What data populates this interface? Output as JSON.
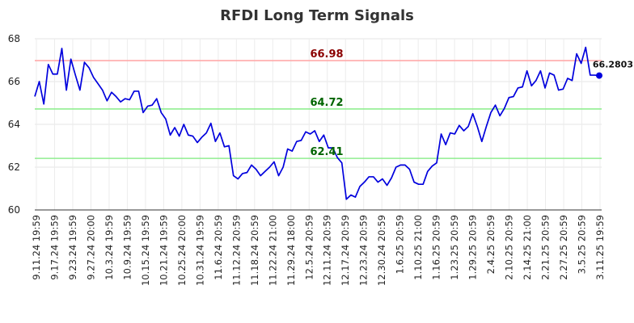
{
  "chart_data": {
    "type": "line",
    "title": "RFDI Long Term Signals",
    "xlabel": "",
    "ylabel": "",
    "ylim": [
      60,
      68
    ],
    "yticks": [
      60,
      62,
      64,
      66,
      68
    ],
    "grid": true,
    "x_tick_labels": [
      "9.11.24 19:59",
      "9.17.24 19:59",
      "9.23.24 19:59",
      "9.27.24 20:00",
      "10.3.24 19:59",
      "10.9.24 19:59",
      "10.15.24 19:59",
      "10.21.24 19:59",
      "10.25.24 20:00",
      "10.31.24 19:59",
      "11.6.24 20:59",
      "11.12.24 20:59",
      "11.18.24 20:59",
      "11.22.24 21:00",
      "11.29.24 18:00",
      "12.5.24 20:59",
      "12.11.24 20:59",
      "12.17.24 20:59",
      "12.23.24 20:59",
      "12.30.24 20:59",
      "1.6.25 20:59",
      "1.10.25 21:00",
      "1.16.25 20:59",
      "1.23.25 20:59",
      "1.29.25 20:59",
      "2.4.25 20:59",
      "2.10.25 20:59",
      "2.14.25 21:00",
      "2.21.25 20:59",
      "2.27.25 20:59",
      "3.5.25 20:59",
      "3.11.25 19:59"
    ],
    "reference_lines": [
      {
        "label": "66.98",
        "value": 66.98,
        "color": "#ffaaaa",
        "text_color": "#8b0000"
      },
      {
        "label": "64.72",
        "value": 64.72,
        "color": "#90ee90",
        "text_color": "#006400"
      },
      {
        "label": "62.41",
        "value": 62.41,
        "color": "#90ee90",
        "text_color": "#006400"
      }
    ],
    "last_value_label": "66.2803",
    "line_color": "#0000dd",
    "series": [
      {
        "values": [
          65.3,
          66.0,
          64.95,
          66.8,
          66.35,
          66.35,
          67.55,
          65.6,
          67.05,
          66.3,
          65.6,
          66.9,
          66.65,
          66.2,
          65.9,
          65.6,
          65.1,
          65.5,
          65.3,
          65.05,
          65.2,
          65.15,
          65.55,
          65.55,
          64.55,
          64.85,
          64.9,
          65.2,
          64.55,
          64.25,
          63.5,
          63.85,
          63.45,
          64.0,
          63.5,
          63.45,
          63.15,
          63.4,
          63.6,
          64.05,
          63.2,
          63.6,
          62.95,
          63.0,
          61.6,
          61.45,
          61.7,
          61.75,
          62.1,
          61.9,
          61.6,
          61.8,
          62.0,
          62.25,
          61.6,
          62.0,
          62.85,
          62.75,
          63.2,
          63.25,
          63.65,
          63.55,
          63.7,
          63.2,
          63.5,
          62.9,
          62.9,
          62.45,
          62.2,
          60.5,
          60.7,
          60.6,
          61.1,
          61.3,
          61.55,
          61.55,
          61.3,
          61.45,
          61.15,
          61.5,
          62.0,
          62.1,
          62.1,
          61.9,
          61.3,
          61.2,
          61.2,
          61.8,
          62.05,
          62.2,
          63.55,
          63.05,
          63.6,
          63.55,
          63.95,
          63.7,
          63.9,
          64.5,
          63.9,
          63.2,
          63.9,
          64.55,
          64.9,
          64.4,
          64.75,
          65.25,
          65.3,
          65.7,
          65.75,
          66.5,
          65.8,
          66.05,
          66.5,
          65.7,
          66.4,
          66.3,
          65.6,
          65.65,
          66.15,
          66.05,
          67.3,
          66.85,
          67.6,
          66.3,
          66.3,
          66.28
        ]
      }
    ]
  }
}
